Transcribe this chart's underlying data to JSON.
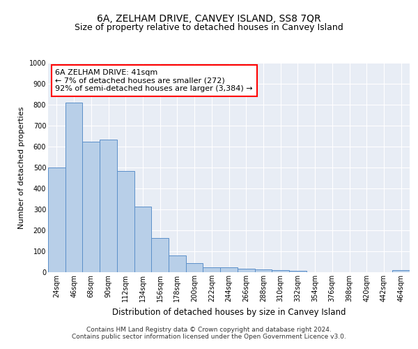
{
  "title": "6A, ZELHAM DRIVE, CANVEY ISLAND, SS8 7QR",
  "subtitle": "Size of property relative to detached houses in Canvey Island",
  "xlabel": "Distribution of detached houses by size in Canvey Island",
  "ylabel": "Number of detached properties",
  "categories": [
    "24sqm",
    "46sqm",
    "68sqm",
    "90sqm",
    "112sqm",
    "134sqm",
    "156sqm",
    "178sqm",
    "200sqm",
    "222sqm",
    "244sqm",
    "266sqm",
    "288sqm",
    "310sqm",
    "332sqm",
    "354sqm",
    "376sqm",
    "398sqm",
    "420sqm",
    "442sqm",
    "464sqm"
  ],
  "values": [
    500,
    810,
    625,
    635,
    483,
    312,
    162,
    80,
    45,
    24,
    22,
    18,
    12,
    10,
    8,
    0,
    0,
    0,
    0,
    0,
    10
  ],
  "bar_color": "#b8cfe8",
  "bar_edge_color": "#5b8fc9",
  "annotation_text": "6A ZELHAM DRIVE: 41sqm\n← 7% of detached houses are smaller (272)\n92% of semi-detached houses are larger (3,384) →",
  "annotation_box_color": "white",
  "annotation_box_edge_color": "red",
  "ylim": [
    0,
    1000
  ],
  "yticks": [
    0,
    100,
    200,
    300,
    400,
    500,
    600,
    700,
    800,
    900,
    1000
  ],
  "footer_line1": "Contains HM Land Registry data © Crown copyright and database right 2024.",
  "footer_line2": "Contains public sector information licensed under the Open Government Licence v3.0.",
  "background_color": "#ffffff",
  "plot_background": "#e8edf5",
  "grid_color": "white",
  "title_fontsize": 10,
  "subtitle_fontsize": 9,
  "xlabel_fontsize": 8.5,
  "ylabel_fontsize": 8,
  "tick_fontsize": 7,
  "footer_fontsize": 6.5,
  "ann_fontsize": 8
}
